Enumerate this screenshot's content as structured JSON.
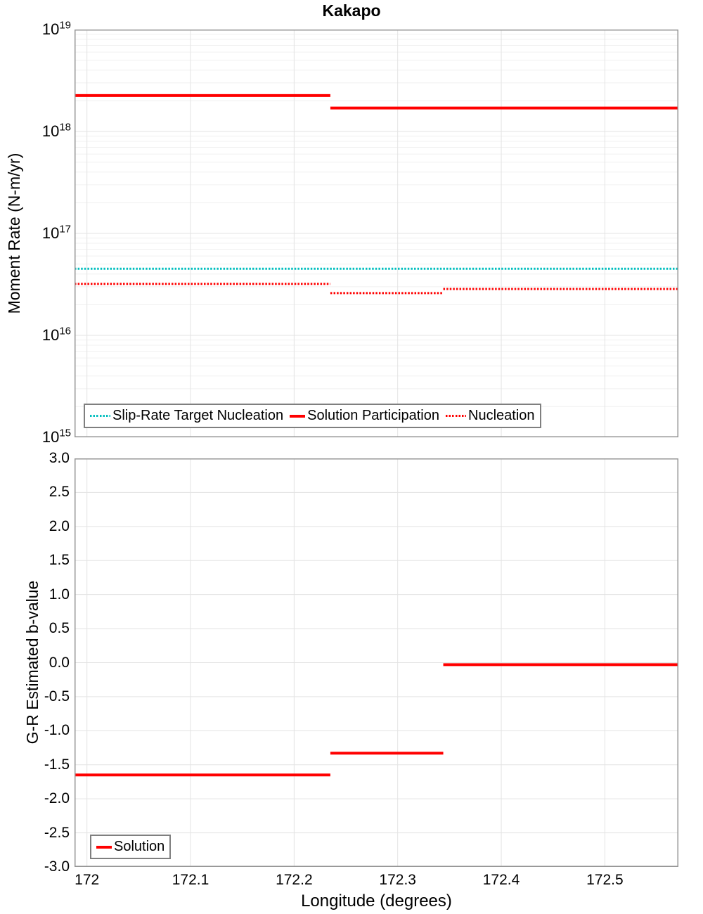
{
  "title": "Kakapo",
  "colors": {
    "solution_red": "#ff0000",
    "target_cyan": "#00bebe",
    "grid_major": "#e3e3e3",
    "grid_minor": "#f0f0f0",
    "frame": "#969696"
  },
  "chart_data": [
    {
      "type": "line",
      "panel": "moment-rate",
      "title": "Kakapo",
      "ylabel": "Moment Rate (N-m/yr)",
      "yscale": "log",
      "ylim": [
        1000000000000000.0,
        1e+19
      ],
      "xlim": [
        171.988,
        172.571
      ],
      "grid": "on",
      "legend_position": "lower left",
      "yticks": [
        {
          "base": "10",
          "exp": "19",
          "value": 1e+19
        },
        {
          "base": "10",
          "exp": "18",
          "value": 1e+18
        },
        {
          "base": "10",
          "exp": "17",
          "value": 1e+17
        },
        {
          "base": "10",
          "exp": "16",
          "value": 1e+16
        },
        {
          "base": "10",
          "exp": "15",
          "value": 1000000000000000.0
        }
      ],
      "xgrid_values": [
        172.0,
        172.1,
        172.2,
        172.3,
        172.4,
        172.5
      ],
      "series": [
        {
          "name": "Slip-Rate Target Nucleation",
          "color": "#00bebe",
          "line_style": "dotted",
          "segments": [
            {
              "x0": 171.988,
              "x1": 172.571,
              "y": 4.5e+16
            }
          ]
        },
        {
          "name": "Solution Participation",
          "color": "#ff0000",
          "line_style": "solid",
          "segments": [
            {
              "x0": 171.988,
              "x1": 172.235,
              "y": 2.25e+18
            },
            {
              "x0": 172.235,
              "x1": 172.571,
              "y": 1.7e+18
            }
          ]
        },
        {
          "name": "Nucleation",
          "color": "#ff0000",
          "line_style": "dotted",
          "segments": [
            {
              "x0": 171.988,
              "x1": 172.235,
              "y": 3.2e+16
            },
            {
              "x0": 172.235,
              "x1": 172.344,
              "y": 2.6e+16
            },
            {
              "x0": 172.344,
              "x1": 172.571,
              "y": 2.85e+16
            }
          ]
        }
      ]
    },
    {
      "type": "line",
      "panel": "b-value",
      "xlabel": "Longitude (degrees)",
      "ylabel": "G-R Estimated b-value",
      "yscale": "linear",
      "ylim": [
        -3.0,
        3.0
      ],
      "xlim": [
        171.988,
        172.571
      ],
      "grid": "on",
      "legend_position": "lower left",
      "yticks": [
        {
          "value": 3.0,
          "label": "3.0"
        },
        {
          "value": 2.5,
          "label": "2.5"
        },
        {
          "value": 2.0,
          "label": "2.0"
        },
        {
          "value": 1.5,
          "label": "1.5"
        },
        {
          "value": 1.0,
          "label": "1.0"
        },
        {
          "value": 0.5,
          "label": "0.5"
        },
        {
          "value": 0.0,
          "label": "0.0"
        },
        {
          "value": -0.5,
          "label": "-0.5"
        },
        {
          "value": -1.0,
          "label": "-1.0"
        },
        {
          "value": -1.5,
          "label": "-1.5"
        },
        {
          "value": -2.0,
          "label": "-2.0"
        },
        {
          "value": -2.5,
          "label": "-2.5"
        },
        {
          "value": -3.0,
          "label": "-3.0"
        }
      ],
      "xticks": [
        {
          "value": 172.0,
          "label": "172"
        },
        {
          "value": 172.1,
          "label": "172.1"
        },
        {
          "value": 172.2,
          "label": "172.2"
        },
        {
          "value": 172.3,
          "label": "172.3"
        },
        {
          "value": 172.4,
          "label": "172.4"
        },
        {
          "value": 172.5,
          "label": "172.5"
        }
      ],
      "series": [
        {
          "name": "Solution",
          "color": "#ff0000",
          "line_style": "solid",
          "segments": [
            {
              "x0": 171.988,
              "x1": 172.235,
              "y": -1.65
            },
            {
              "x0": 172.235,
              "x1": 172.344,
              "y": -1.33
            },
            {
              "x0": 172.344,
              "x1": 172.571,
              "y": -0.03
            }
          ]
        }
      ]
    }
  ]
}
